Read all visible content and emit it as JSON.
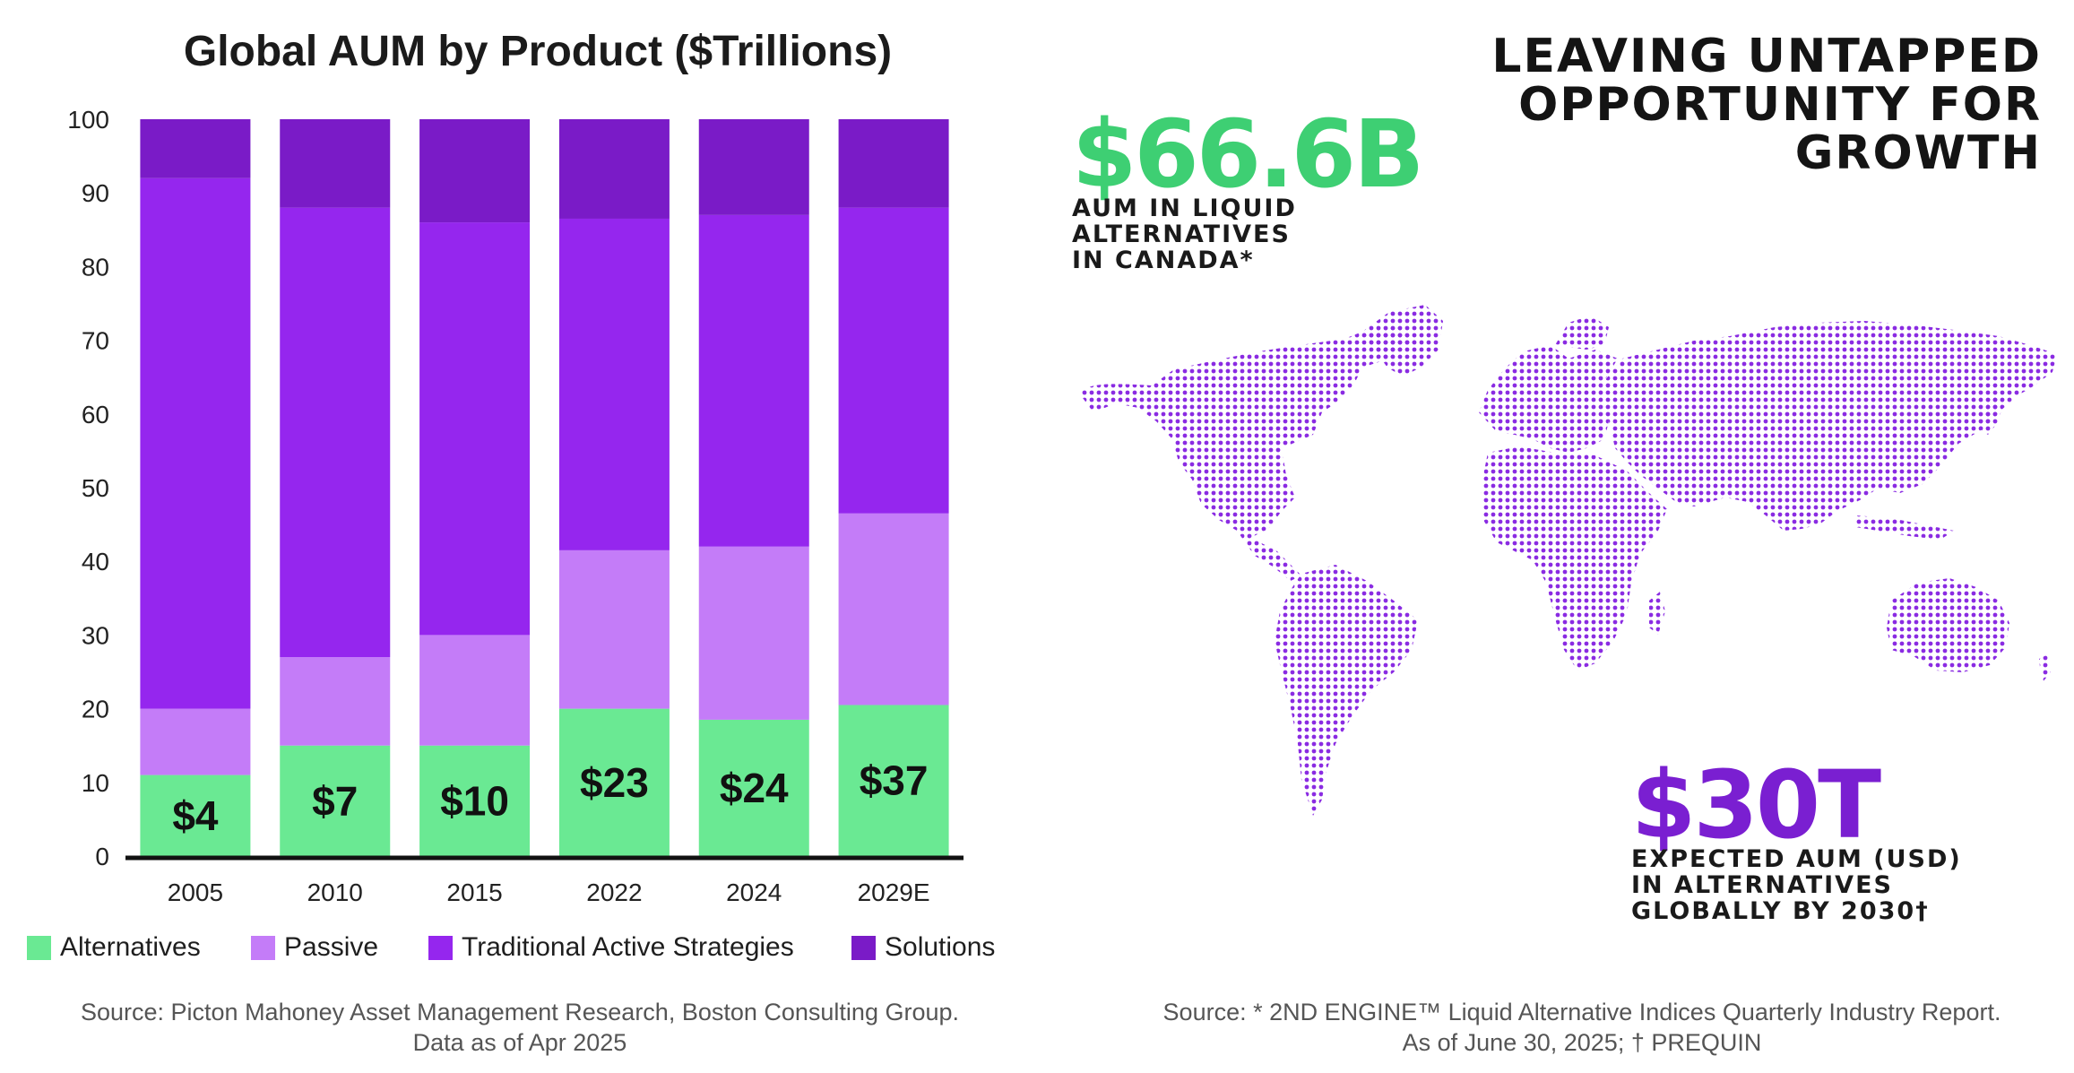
{
  "chart_data": {
    "type": "bar",
    "stacked": true,
    "title": "Global AUM by Product ($Trillions)",
    "categories": [
      "2005",
      "2010",
      "2015",
      "2022",
      "2024",
      "2029E"
    ],
    "ylim": [
      0,
      100
    ],
    "yticks": [
      0,
      10,
      20,
      30,
      40,
      50,
      60,
      70,
      80,
      90,
      100
    ],
    "grid": false,
    "legend_position": "bottom",
    "series": [
      {
        "name": "Alternatives",
        "color": "#6ae993",
        "values": [
          11,
          15,
          15,
          20,
          18.5,
          20.5
        ]
      },
      {
        "name": "Passive",
        "color": "#c47cf8",
        "values": [
          9,
          12,
          15,
          21.5,
          23.5,
          26
        ]
      },
      {
        "name": "Traditional Active Strategies",
        "color": "#9526ee",
        "values": [
          72,
          61,
          56,
          45,
          45,
          41.5
        ]
      },
      {
        "name": "Solutions",
        "color": "#7a1bc7",
        "values": [
          8,
          12,
          14,
          13.5,
          13,
          12
        ]
      }
    ],
    "bar_labels": [
      "$4",
      "$7",
      "$10",
      "$23",
      "$24",
      "$37"
    ]
  },
  "sources": {
    "left": [
      "Source: Picton Mahoney Asset Management Research, Boston Consulting Group.",
      "Data as of Apr 2025"
    ],
    "right": [
      "Source: * 2ND ENGINE™ Liquid Alternative Indices Quarterly Industry Report.",
      "As of June 30, 2025; † PREQUIN"
    ]
  },
  "infographic": {
    "headline": [
      "LEAVING UNTAPPED",
      "OPPORTUNITY FOR",
      "GROWTH"
    ],
    "stat1": {
      "value": "$66.6B",
      "color": "#3ecf73",
      "lines": [
        "AUM IN LIQUID",
        "ALTERNATIVES",
        "IN CANADA*"
      ]
    },
    "stat2": {
      "value": "$30T",
      "color": "#7a1fd1",
      "lines": [
        "EXPECTED AUM (USD)",
        "IN ALTERNATIVES",
        "GLOBALLY BY 2030†"
      ]
    },
    "map_color": "#8a2be2",
    "map_icon": "world-dot-map-icon"
  }
}
